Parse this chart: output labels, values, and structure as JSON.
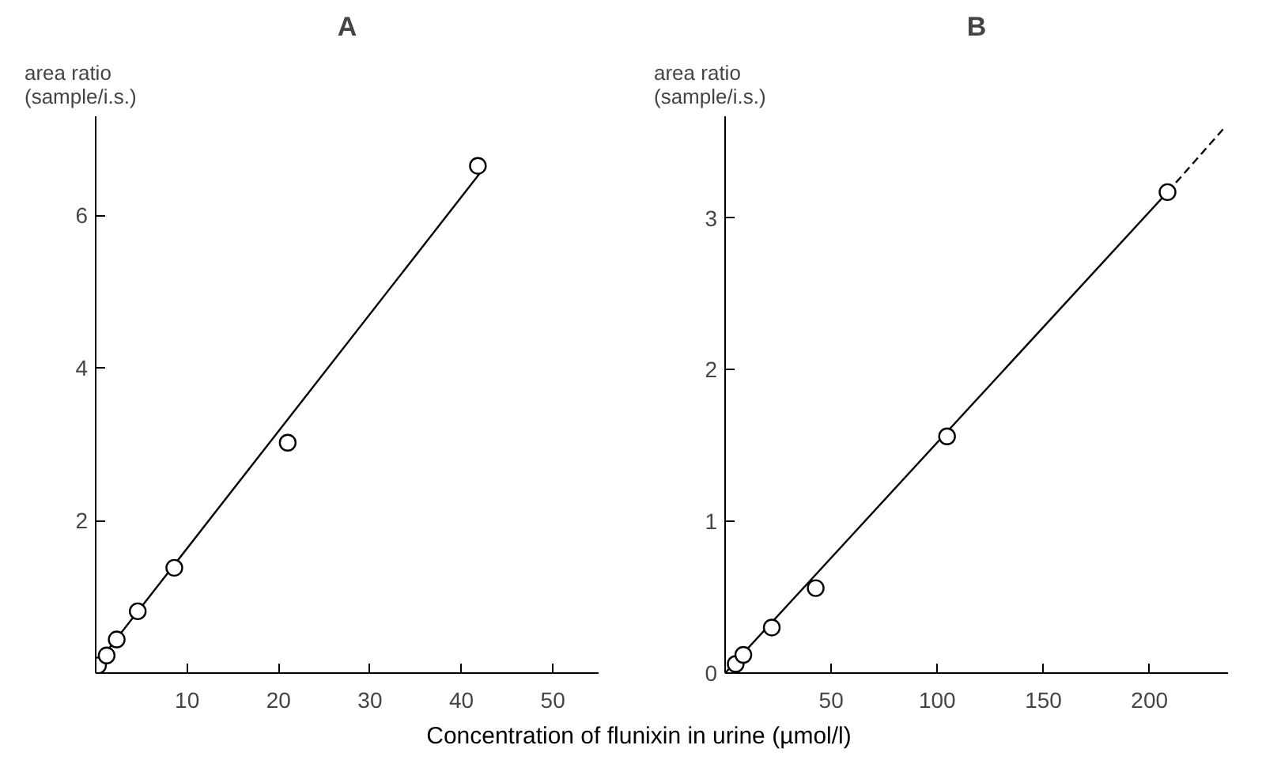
{
  "chart_data": [
    {
      "type": "scatter",
      "title": "A",
      "ylabel": "area ratio\n(sample/i.s.)",
      "xlabel": "Concentration of flunixin in urine (µmol/l)",
      "xlim": [
        0,
        55
      ],
      "ylim": [
        0,
        7.3
      ],
      "xticks": [
        10,
        20,
        30,
        40,
        50
      ],
      "yticks": [
        2,
        4,
        6
      ],
      "grid": false,
      "series": [
        {
          "marker": "circle",
          "color": "#000000",
          "x": [
            0.26,
            1.2,
            2.3,
            4.6,
            8.6,
            21,
            41.8
          ],
          "values": [
            0.1,
            0.23,
            0.44,
            0.81,
            1.38,
            3.02,
            6.65
          ]
        },
        {
          "type": "line",
          "marker": "none",
          "line_style": "solid",
          "color": "#000000",
          "x": [
            0,
            42
          ],
          "values": [
            0.1,
            6.55
          ]
        }
      ]
    },
    {
      "type": "scatter",
      "title": "B",
      "ylabel": "area ratio\n(sample/i.s.)",
      "xlim": [
        0,
        237
      ],
      "ylim": [
        0,
        3.67
      ],
      "xticks": [
        50,
        100,
        150,
        200
      ],
      "yticks": [
        {
          "value": 0,
          "label": "0"
        },
        1,
        2,
        3
      ],
      "grid": false,
      "series": [
        {
          "marker": "circle",
          "color": "#000000",
          "x": [
            5,
            8.6,
            22,
            42.7,
            104.6,
            208.5
          ],
          "values": [
            0.06,
            0.12,
            0.3,
            0.56,
            1.56,
            3.17
          ]
        },
        {
          "type": "line",
          "marker": "none",
          "line_style": "solid",
          "color": "#000000",
          "x": [
            0,
            208.5
          ],
          "values": [
            0,
            3.17
          ]
        },
        {
          "type": "line",
          "marker": "none",
          "line_style": "dashed",
          "color": "#000000",
          "x": [
            208.5,
            235
          ],
          "values": [
            3.17,
            3.59
          ]
        }
      ]
    }
  ]
}
